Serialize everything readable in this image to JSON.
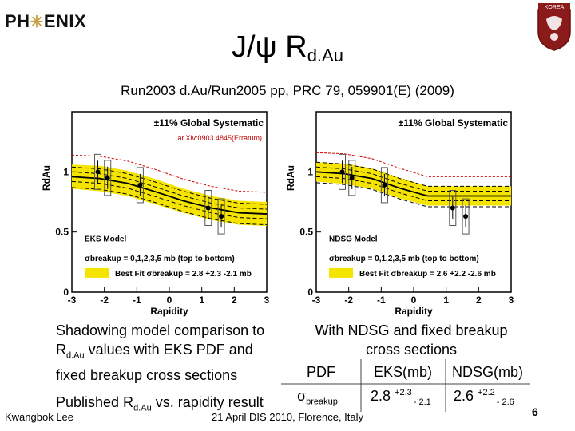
{
  "header": {
    "logo_text_left": "PH",
    "logo_text_right": "ENIX",
    "crest_text": "KOREA"
  },
  "title": {
    "main": "J/ψ R",
    "sub": "d.Au"
  },
  "subtitle": "Run2003 d.Au/Run2005 pp, PRC 79, 059901(E) (2009)",
  "chart_data": [
    {
      "type": "scatter",
      "title": "±11% Global Systematic",
      "annotation": "ar.Xiv:0903.4845(Erratum)",
      "model_label": "EKS Model",
      "legend_line": "σbreakup = 0,1,2,3,5 mb (top to bottom)",
      "best_fit_label": "Best Fit σbreakup = 2.8 +2.3 -2.1 mb",
      "xlabel": "Rapidity",
      "ylabel": "RdAu",
      "xlim": [
        -3,
        3
      ],
      "ylim": [
        0,
        1.5
      ],
      "xticks": [
        "-3",
        "-2",
        "-1",
        "0",
        "1",
        "2",
        "3"
      ],
      "yticks": [
        "0",
        "0.5",
        "1"
      ],
      "points": [
        {
          "x": -2.2,
          "y": 1.0
        },
        {
          "x": -1.9,
          "y": 0.95
        },
        {
          "x": -0.9,
          "y": 0.89
        },
        {
          "x": 1.2,
          "y": 0.7
        },
        {
          "x": 1.6,
          "y": 0.63
        }
      ],
      "band_low": [
        0.86,
        0.84,
        0.8,
        0.73,
        0.66,
        0.6,
        0.56,
        0.55
      ],
      "band_high": [
        1.06,
        1.05,
        1.01,
        0.94,
        0.86,
        0.8,
        0.76,
        0.75
      ]
    },
    {
      "type": "scatter",
      "title": "±11% Global Systematic",
      "model_label": "NDSG Model",
      "legend_line": "σbreakup = 0,1,2,3,5 mb (top to bottom)",
      "best_fit_label": "Best Fit σbreakup = 2.6 +2.2 -2.6 mb",
      "xlabel": "Rapidity",
      "ylabel": "RdAu",
      "xlim": [
        -3,
        3
      ],
      "ylim": [
        0,
        1.5
      ],
      "xticks": [
        "-3",
        "-2",
        "-1",
        "0",
        "1",
        "2",
        "3"
      ],
      "yticks": [
        "0",
        "0.5",
        "1"
      ],
      "points": [
        {
          "x": -2.2,
          "y": 1.0
        },
        {
          "x": -1.9,
          "y": 0.95
        },
        {
          "x": -0.9,
          "y": 0.89
        },
        {
          "x": 1.2,
          "y": 0.7
        },
        {
          "x": 1.6,
          "y": 0.63
        }
      ],
      "band_low": [
        0.92,
        0.9,
        0.86,
        0.78,
        0.72,
        0.72,
        0.72,
        0.72
      ],
      "band_high": [
        1.08,
        1.07,
        1.03,
        0.95,
        0.88,
        0.88,
        0.88,
        0.88
      ]
    }
  ],
  "captions": {
    "left": "Shadowing model comparison to",
    "left2a": "R",
    "left2sub": "d.Au",
    "left2b": " values with EKS PDF and",
    "left3": "fixed breakup cross sections",
    "right1": "With NDSG and fixed breakup",
    "right2": "cross sections"
  },
  "table": {
    "h_pdf": "PDF",
    "h_eks": "EKS(mb)",
    "h_ndsg": "NDSG(mb)",
    "row_sigma": "σ",
    "row_sigma_sub": "breakup",
    "eks_val": "2.8",
    "eks_up": "+2.3",
    "eks_dn": "- 2.1",
    "ndsg_val": "2.6",
    "ndsg_up": "+2.2",
    "ndsg_dn": "- 2.6"
  },
  "footer": {
    "published_a": "Published R",
    "published_sub": "d.Au",
    "published_b": " vs. rapidity result",
    "author": "Kwangbok Lee",
    "conference": "21 April DIS 2010, Florence, Italy",
    "page": "6"
  }
}
